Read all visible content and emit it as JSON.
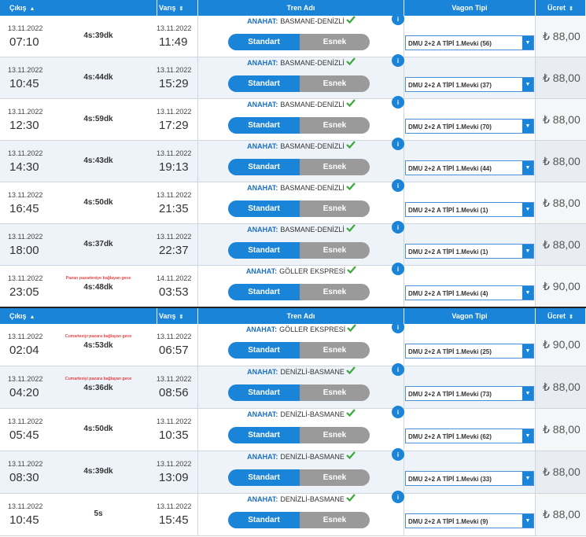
{
  "tables": [
    {
      "header": [
        "Çıkış",
        "Varış",
        "Tren Adı",
        "Vagon Tipi",
        "Ücret"
      ],
      "rows": [
        {
          "dep_date": "13.11.2022",
          "dep_time": "07:10",
          "duration": "4s:39dk",
          "arr_date": "13.11.2022",
          "arr_time": "11:49",
          "line": "ANAHAT:",
          "train": "BASMANE-DENİZLİ",
          "standard": "Standart",
          "flex": "Esnek",
          "wagon": "DMU 2+2 A TİPİ 1.Mevki (56)",
          "price": "₺ 88,00"
        },
        {
          "dep_date": "13.11.2022",
          "dep_time": "10:45",
          "duration": "4s:44dk",
          "arr_date": "13.11.2022",
          "arr_time": "15:29",
          "line": "ANAHAT:",
          "train": "BASMANE-DENİZLİ",
          "standard": "Standart",
          "flex": "Esnek",
          "wagon": "DMU 2+2 A TİPİ 1.Mevki (37)",
          "price": "₺ 88,00"
        },
        {
          "dep_date": "13.11.2022",
          "dep_time": "12:30",
          "duration": "4s:59dk",
          "arr_date": "13.11.2022",
          "arr_time": "17:29",
          "line": "ANAHAT:",
          "train": "BASMANE-DENİZLİ",
          "standard": "Standart",
          "flex": "Esnek",
          "wagon": "DMU 2+2 A TİPİ 1.Mevki (70)",
          "price": "₺ 88,00"
        },
        {
          "dep_date": "13.11.2022",
          "dep_time": "14:30",
          "duration": "4s:43dk",
          "arr_date": "13.11.2022",
          "arr_time": "19:13",
          "line": "ANAHAT:",
          "train": "BASMANE-DENİZLİ",
          "standard": "Standart",
          "flex": "Esnek",
          "wagon": "DMU 2+2 A TİPİ 1.Mevki (44)",
          "price": "₺ 88,00"
        },
        {
          "dep_date": "13.11.2022",
          "dep_time": "16:45",
          "duration": "4s:50dk",
          "arr_date": "13.11.2022",
          "arr_time": "21:35",
          "line": "ANAHAT:",
          "train": "BASMANE-DENİZLİ",
          "standard": "Standart",
          "flex": "Esnek",
          "wagon": "DMU 2+2 A TİPİ 1.Mevki (1)",
          "price": "₺ 88,00"
        },
        {
          "dep_date": "13.11.2022",
          "dep_time": "18:00",
          "duration": "4s:37dk",
          "arr_date": "13.11.2022",
          "arr_time": "22:37",
          "line": "ANAHAT:",
          "train": "BASMANE-DENİZLİ",
          "standard": "Standart",
          "flex": "Esnek",
          "wagon": "DMU 2+2 A TİPİ 1.Mevki (1)",
          "price": "₺ 88,00"
        },
        {
          "dep_date": "13.11.2022",
          "dep_time": "23:05",
          "note": "Pazarı pazartesiye bağlayan gece",
          "duration": "4s:48dk",
          "arr_date": "14.11.2022",
          "arr_time": "03:53",
          "line": "ANAHAT:",
          "train": "GÖLLER EKSPRESİ",
          "standard": "Standart",
          "flex": "Esnek",
          "wagon": "DMU 2+2 A TİPİ 1.Mevki (4)",
          "price": "₺ 90,00"
        }
      ]
    },
    {
      "header": [
        "Çıkış",
        "Varış",
        "Tren Adı",
        "Vagon Tipi",
        "Ücret"
      ],
      "rows": [
        {
          "dep_date": "13.11.2022",
          "dep_time": "02:04",
          "note": "Cumartesiyi pazara bağlayan gece",
          "duration": "4s:53dk",
          "arr_date": "13.11.2022",
          "arr_time": "06:57",
          "line": "ANAHAT:",
          "train": "GÖLLER EKSPRESİ",
          "standard": "Standart",
          "flex": "Esnek",
          "wagon": "DMU 2+2 A TİPİ 1.Mevki (25)",
          "price": "₺ 90,00"
        },
        {
          "dep_date": "13.11.2022",
          "dep_time": "04:20",
          "note": "Cumartesiyi pazara bağlayan gece",
          "duration": "4s:36dk",
          "arr_date": "13.11.2022",
          "arr_time": "08:56",
          "line": "ANAHAT:",
          "train": "DENİZLİ-BASMANE",
          "standard": "Standart",
          "flex": "Esnek",
          "wagon": "DMU 2+2 A TİPİ 1.Mevki (73)",
          "price": "₺ 88,00"
        },
        {
          "dep_date": "13.11.2022",
          "dep_time": "05:45",
          "duration": "4s:50dk",
          "arr_date": "13.11.2022",
          "arr_time": "10:35",
          "line": "ANAHAT:",
          "train": "DENİZLİ-BASMANE",
          "standard": "Standart",
          "flex": "Esnek",
          "wagon": "DMU 2+2 A TİPİ 1.Mevki (62)",
          "price": "₺ 88,00"
        },
        {
          "dep_date": "13.11.2022",
          "dep_time": "08:30",
          "duration": "4s:39dk",
          "arr_date": "13.11.2022",
          "arr_time": "13:09",
          "line": "ANAHAT:",
          "train": "DENİZLİ-BASMANE",
          "standard": "Standart",
          "flex": "Esnek",
          "wagon": "DMU 2+2 A TİPİ 1.Mevki (33)",
          "price": "₺ 88,00"
        },
        {
          "dep_date": "13.11.2022",
          "dep_time": "10:45",
          "duration": "5s",
          "arr_date": "13.11.2022",
          "arr_time": "15:45",
          "line": "ANAHAT:",
          "train": "DENİZLİ-BASMANE",
          "standard": "Standart",
          "flex": "Esnek",
          "wagon": "DMU 2+2 A TİPİ 1.Mevki (9)",
          "price": "₺ 88,00"
        }
      ]
    }
  ]
}
